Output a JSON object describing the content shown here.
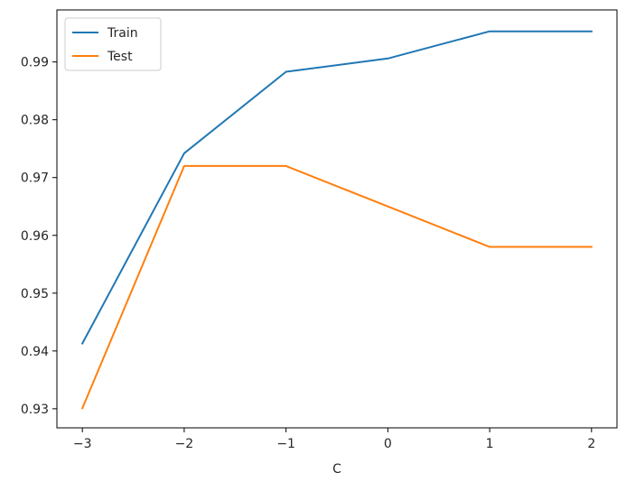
{
  "chart_data": {
    "type": "line",
    "title": "",
    "xlabel": "C",
    "ylabel": "",
    "x": [
      -3,
      -2,
      -1,
      0,
      1,
      2
    ],
    "xticks": [
      "−3",
      "−2",
      "−1",
      "0",
      "1",
      "2"
    ],
    "yticks": [
      "0.93",
      "0.94",
      "0.95",
      "0.96",
      "0.97",
      "0.98",
      "0.99"
    ],
    "xlim": [
      -3.25,
      2.25
    ],
    "ylim": [
      0.9267,
      0.999
    ],
    "grid": false,
    "legend_position": "top-left",
    "series": [
      {
        "name": "Train",
        "color": "#1f77b4",
        "values": [
          0.9413,
          0.9742,
          0.9883,
          0.9906,
          0.9953,
          0.9953
        ]
      },
      {
        "name": "Test",
        "color": "#ff7f0e",
        "values": [
          0.9301,
          0.972,
          0.972,
          0.965,
          0.958,
          0.958
        ]
      }
    ]
  }
}
